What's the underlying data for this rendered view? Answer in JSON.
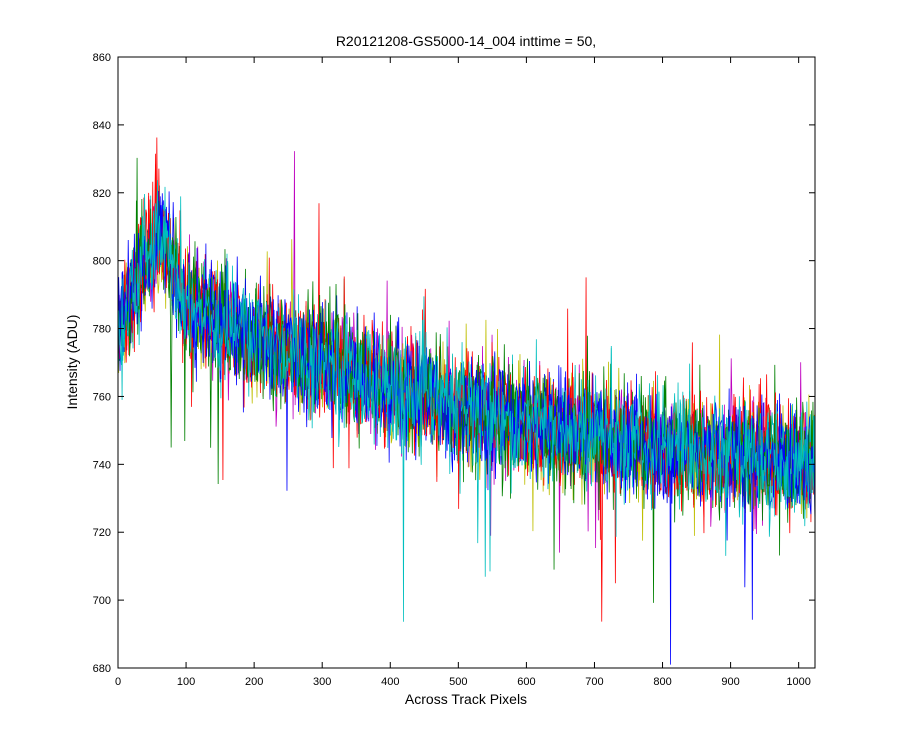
{
  "chart_data": {
    "type": "line",
    "title": "R20121208-GS5000-14_004 inttime = 50,",
    "xlabel": "Across Track Pixels",
    "ylabel": "Intensity (ADU)",
    "xlim": [
      0,
      1024
    ],
    "ylim": [
      680,
      860
    ],
    "xticks": [
      0,
      100,
      200,
      300,
      400,
      500,
      600,
      700,
      800,
      900,
      1000
    ],
    "yticks": [
      680,
      700,
      720,
      740,
      760,
      780,
      800,
      820,
      840,
      860
    ],
    "grid": false,
    "colors": [
      "#0000ff",
      "#008000",
      "#ff0000",
      "#00bfbf",
      "#bf00bf",
      "#bfbf00"
    ],
    "trend": {
      "x": [
        0,
        20,
        40,
        60,
        80,
        100,
        150,
        200,
        300,
        400,
        500,
        600,
        700,
        800,
        900,
        1000,
        1023
      ],
      "mean": [
        778,
        790,
        800,
        808,
        798,
        788,
        782,
        777,
        770,
        763,
        757,
        752,
        748,
        745,
        743,
        741,
        740
      ],
      "spread": 14
    }
  }
}
